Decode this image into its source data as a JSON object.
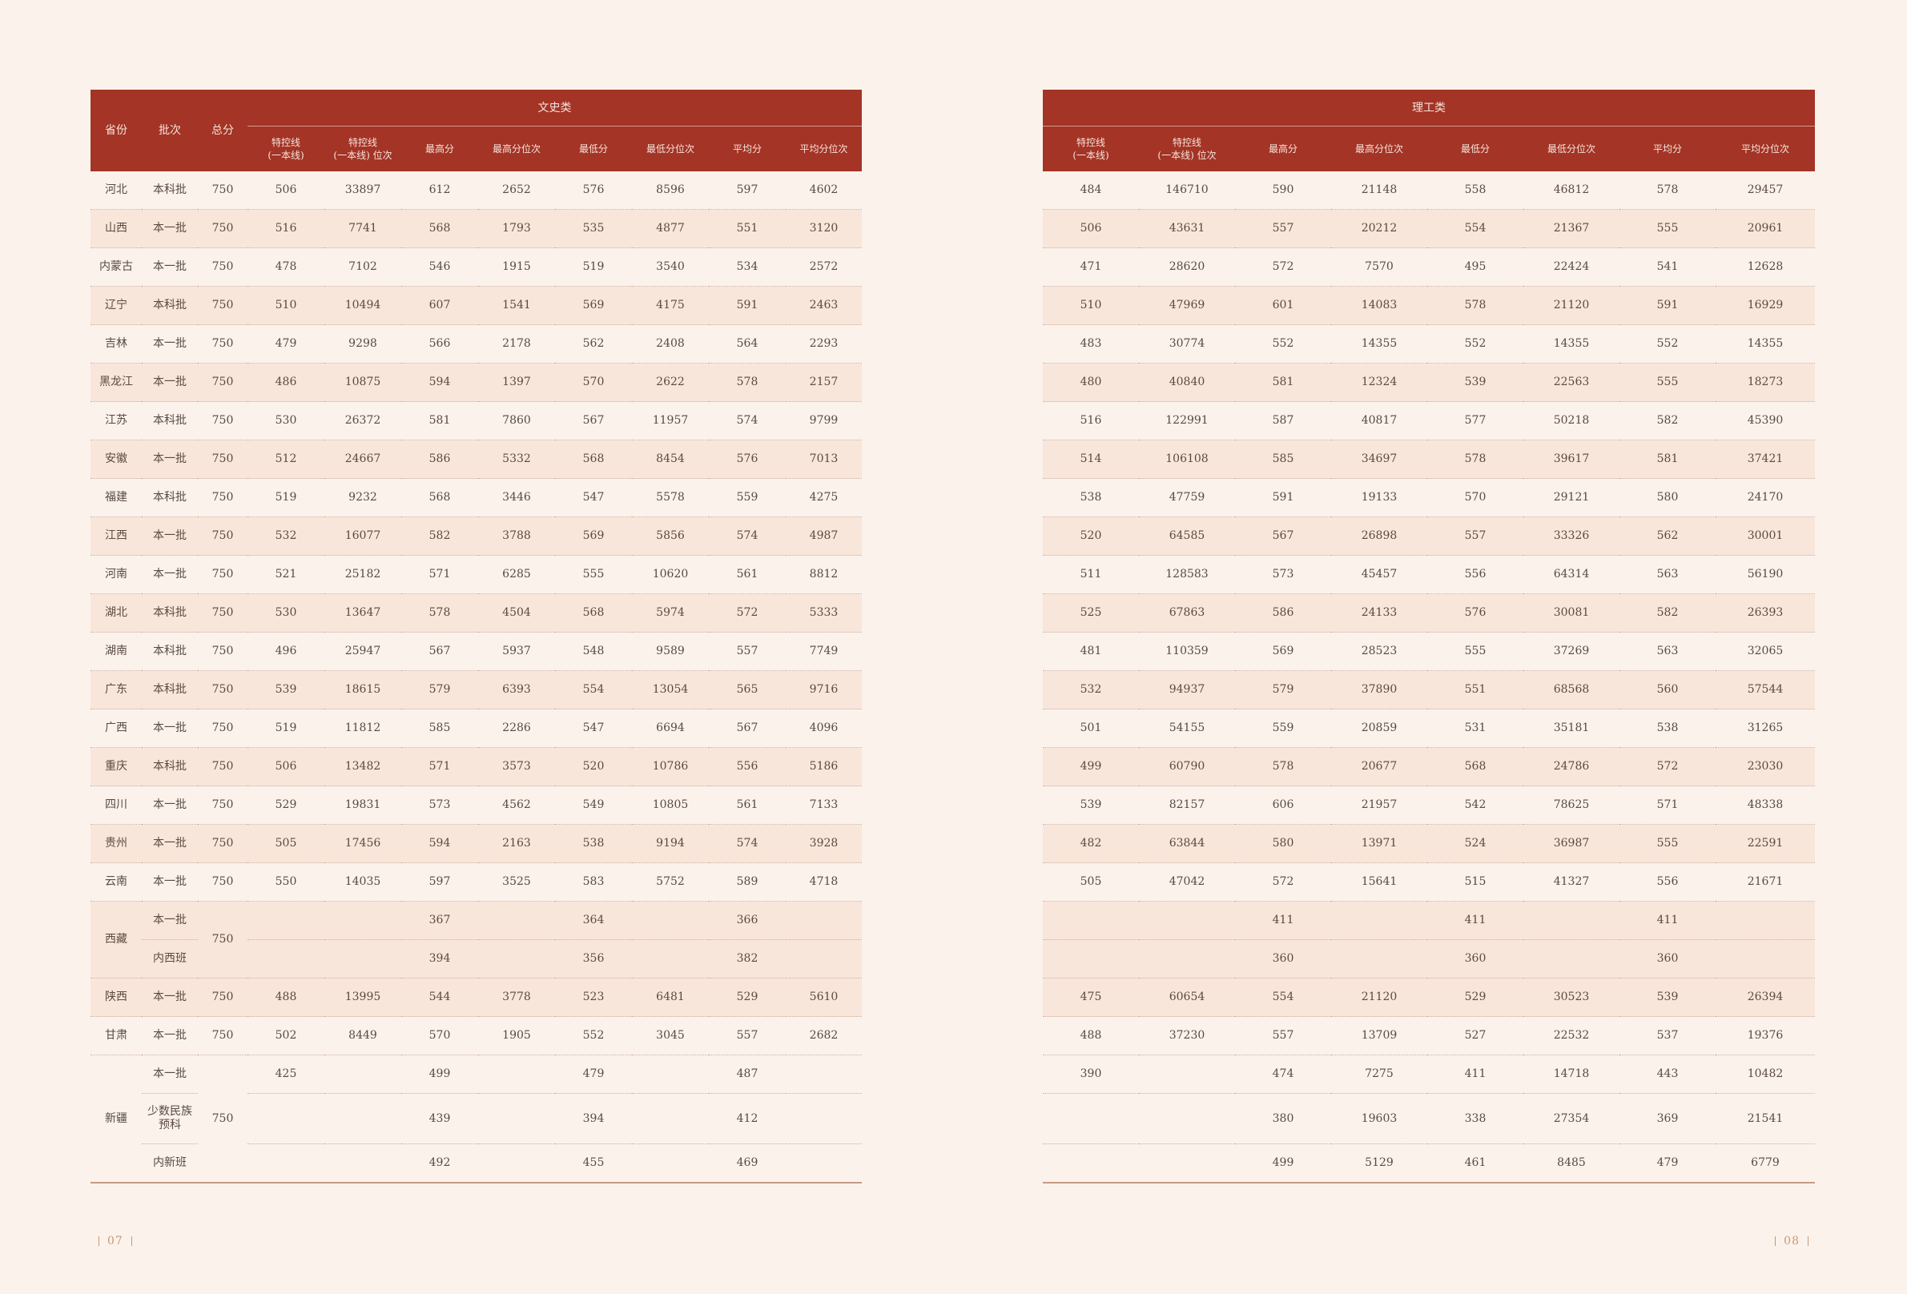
{
  "left": {
    "headers": {
      "province": "省份",
      "batch": "批次",
      "total": "总分",
      "group": "文史类",
      "cols": [
        "特控线\n(一本线)",
        "特控线\n(一本线) 位次",
        "最高分",
        "最高分位次",
        "最低分",
        "最低分位次",
        "平均分",
        "平均分位次"
      ]
    }
  },
  "right": {
    "headers": {
      "group": "理工类",
      "cols": [
        "特控线\n(一本线)",
        "特控线\n(一本线) 位次",
        "最高分",
        "最高分位次",
        "最低分",
        "最低分位次",
        "平均分",
        "平均分位次"
      ]
    }
  },
  "rows": [
    {
      "province": "河北",
      "batch": "本科批",
      "total": "750",
      "wen": [
        "506",
        "33897",
        "612",
        "2652",
        "576",
        "8596",
        "597",
        "4602"
      ],
      "li": [
        "484",
        "146710",
        "590",
        "21148",
        "558",
        "46812",
        "578",
        "29457"
      ]
    },
    {
      "province": "山西",
      "batch": "本一批",
      "total": "750",
      "wen": [
        "516",
        "7741",
        "568",
        "1793",
        "535",
        "4877",
        "551",
        "3120"
      ],
      "li": [
        "506",
        "43631",
        "557",
        "20212",
        "554",
        "21367",
        "555",
        "20961"
      ]
    },
    {
      "province": "内蒙古",
      "batch": "本一批",
      "total": "750",
      "wen": [
        "478",
        "7102",
        "546",
        "1915",
        "519",
        "3540",
        "534",
        "2572"
      ],
      "li": [
        "471",
        "28620",
        "572",
        "7570",
        "495",
        "22424",
        "541",
        "12628"
      ]
    },
    {
      "province": "辽宁",
      "batch": "本科批",
      "total": "750",
      "wen": [
        "510",
        "10494",
        "607",
        "1541",
        "569",
        "4175",
        "591",
        "2463"
      ],
      "li": [
        "510",
        "47969",
        "601",
        "14083",
        "578",
        "21120",
        "591",
        "16929"
      ]
    },
    {
      "province": "吉林",
      "batch": "本一批",
      "total": "750",
      "wen": [
        "479",
        "9298",
        "566",
        "2178",
        "562",
        "2408",
        "564",
        "2293"
      ],
      "li": [
        "483",
        "30774",
        "552",
        "14355",
        "552",
        "14355",
        "552",
        "14355"
      ]
    },
    {
      "province": "黑龙江",
      "batch": "本一批",
      "total": "750",
      "wen": [
        "486",
        "10875",
        "594",
        "1397",
        "570",
        "2622",
        "578",
        "2157"
      ],
      "li": [
        "480",
        "40840",
        "581",
        "12324",
        "539",
        "22563",
        "555",
        "18273"
      ]
    },
    {
      "province": "江苏",
      "batch": "本科批",
      "total": "750",
      "wen": [
        "530",
        "26372",
        "581",
        "7860",
        "567",
        "11957",
        "574",
        "9799"
      ],
      "li": [
        "516",
        "122991",
        "587",
        "40817",
        "577",
        "50218",
        "582",
        "45390"
      ]
    },
    {
      "province": "安徽",
      "batch": "本一批",
      "total": "750",
      "wen": [
        "512",
        "24667",
        "586",
        "5332",
        "568",
        "8454",
        "576",
        "7013"
      ],
      "li": [
        "514",
        "106108",
        "585",
        "34697",
        "578",
        "39617",
        "581",
        "37421"
      ]
    },
    {
      "province": "福建",
      "batch": "本科批",
      "total": "750",
      "wen": [
        "519",
        "9232",
        "568",
        "3446",
        "547",
        "5578",
        "559",
        "4275"
      ],
      "li": [
        "538",
        "47759",
        "591",
        "19133",
        "570",
        "29121",
        "580",
        "24170"
      ]
    },
    {
      "province": "江西",
      "batch": "本一批",
      "total": "750",
      "wen": [
        "532",
        "16077",
        "582",
        "3788",
        "569",
        "5856",
        "574",
        "4987"
      ],
      "li": [
        "520",
        "64585",
        "567",
        "26898",
        "557",
        "33326",
        "562",
        "30001"
      ]
    },
    {
      "province": "河南",
      "batch": "本一批",
      "total": "750",
      "wen": [
        "521",
        "25182",
        "571",
        "6285",
        "555",
        "10620",
        "561",
        "8812"
      ],
      "li": [
        "511",
        "128583",
        "573",
        "45457",
        "556",
        "64314",
        "563",
        "56190"
      ]
    },
    {
      "province": "湖北",
      "batch": "本科批",
      "total": "750",
      "wen": [
        "530",
        "13647",
        "578",
        "4504",
        "568",
        "5974",
        "572",
        "5333"
      ],
      "li": [
        "525",
        "67863",
        "586",
        "24133",
        "576",
        "30081",
        "582",
        "26393"
      ]
    },
    {
      "province": "湖南",
      "batch": "本科批",
      "total": "750",
      "wen": [
        "496",
        "25947",
        "567",
        "5937",
        "548",
        "9589",
        "557",
        "7749"
      ],
      "li": [
        "481",
        "110359",
        "569",
        "28523",
        "555",
        "37269",
        "563",
        "32065"
      ]
    },
    {
      "province": "广东",
      "batch": "本科批",
      "total": "750",
      "wen": [
        "539",
        "18615",
        "579",
        "6393",
        "554",
        "13054",
        "565",
        "9716"
      ],
      "li": [
        "532",
        "94937",
        "579",
        "37890",
        "551",
        "68568",
        "560",
        "57544"
      ]
    },
    {
      "province": "广西",
      "batch": "本一批",
      "total": "750",
      "wen": [
        "519",
        "11812",
        "585",
        "2286",
        "547",
        "6694",
        "567",
        "4096"
      ],
      "li": [
        "501",
        "54155",
        "559",
        "20859",
        "531",
        "35181",
        "538",
        "31265"
      ]
    },
    {
      "province": "重庆",
      "batch": "本科批",
      "total": "750",
      "wen": [
        "506",
        "13482",
        "571",
        "3573",
        "520",
        "10786",
        "556",
        "5186"
      ],
      "li": [
        "499",
        "60790",
        "578",
        "20677",
        "568",
        "24786",
        "572",
        "23030"
      ]
    },
    {
      "province": "四川",
      "batch": "本一批",
      "total": "750",
      "wen": [
        "529",
        "19831",
        "573",
        "4562",
        "549",
        "10805",
        "561",
        "7133"
      ],
      "li": [
        "539",
        "82157",
        "606",
        "21957",
        "542",
        "78625",
        "571",
        "48338"
      ]
    },
    {
      "province": "贵州",
      "batch": "本一批",
      "total": "750",
      "wen": [
        "505",
        "17456",
        "594",
        "2163",
        "538",
        "9194",
        "574",
        "3928"
      ],
      "li": [
        "482",
        "63844",
        "580",
        "13971",
        "524",
        "36987",
        "555",
        "22591"
      ]
    },
    {
      "province": "云南",
      "batch": "本一批",
      "total": "750",
      "wen": [
        "550",
        "14035",
        "597",
        "3525",
        "583",
        "5752",
        "589",
        "4718"
      ],
      "li": [
        "505",
        "47042",
        "572",
        "15641",
        "515",
        "41327",
        "556",
        "21671"
      ]
    },
    {
      "province": "西藏",
      "batch": "本一批",
      "total": "750",
      "wen": [
        "",
        "",
        "367",
        "",
        "364",
        "",
        "366",
        ""
      ],
      "li": [
        "",
        "",
        "411",
        "",
        "411",
        "",
        "411",
        ""
      ]
    },
    {
      "province": "",
      "batch": "内西班",
      "total": "",
      "wen": [
        "",
        "",
        "394",
        "",
        "356",
        "",
        "382",
        ""
      ],
      "li": [
        "",
        "",
        "360",
        "",
        "360",
        "",
        "360",
        ""
      ]
    },
    {
      "province": "陕西",
      "batch": "本一批",
      "total": "750",
      "wen": [
        "488",
        "13995",
        "544",
        "3778",
        "523",
        "6481",
        "529",
        "5610"
      ],
      "li": [
        "475",
        "60654",
        "554",
        "21120",
        "529",
        "30523",
        "539",
        "26394"
      ]
    },
    {
      "province": "甘肃",
      "batch": "本一批",
      "total": "750",
      "wen": [
        "502",
        "8449",
        "570",
        "1905",
        "552",
        "3045",
        "557",
        "2682"
      ],
      "li": [
        "488",
        "37230",
        "557",
        "13709",
        "527",
        "22532",
        "537",
        "19376"
      ]
    },
    {
      "province": "新疆",
      "batch": "本一批",
      "total": "750",
      "wen": [
        "425",
        "",
        "499",
        "",
        "479",
        "",
        "487",
        ""
      ],
      "li": [
        "390",
        "",
        "474",
        "7275",
        "411",
        "14718",
        "443",
        "10482"
      ]
    },
    {
      "province": "",
      "batch": "少数民族\n预科",
      "total": "",
      "wen": [
        "",
        "",
        "439",
        "",
        "394",
        "",
        "412",
        ""
      ],
      "li": [
        "",
        "",
        "380",
        "19603",
        "338",
        "27354",
        "369",
        "21541"
      ]
    },
    {
      "province": "",
      "batch": "内新班",
      "total": "",
      "wen": [
        "",
        "",
        "492",
        "",
        "455",
        "",
        "469",
        ""
      ],
      "li": [
        "",
        "",
        "499",
        "5129",
        "461",
        "8485",
        "479",
        "6779"
      ]
    }
  ],
  "pages": {
    "left": "07",
    "right": "08"
  }
}
